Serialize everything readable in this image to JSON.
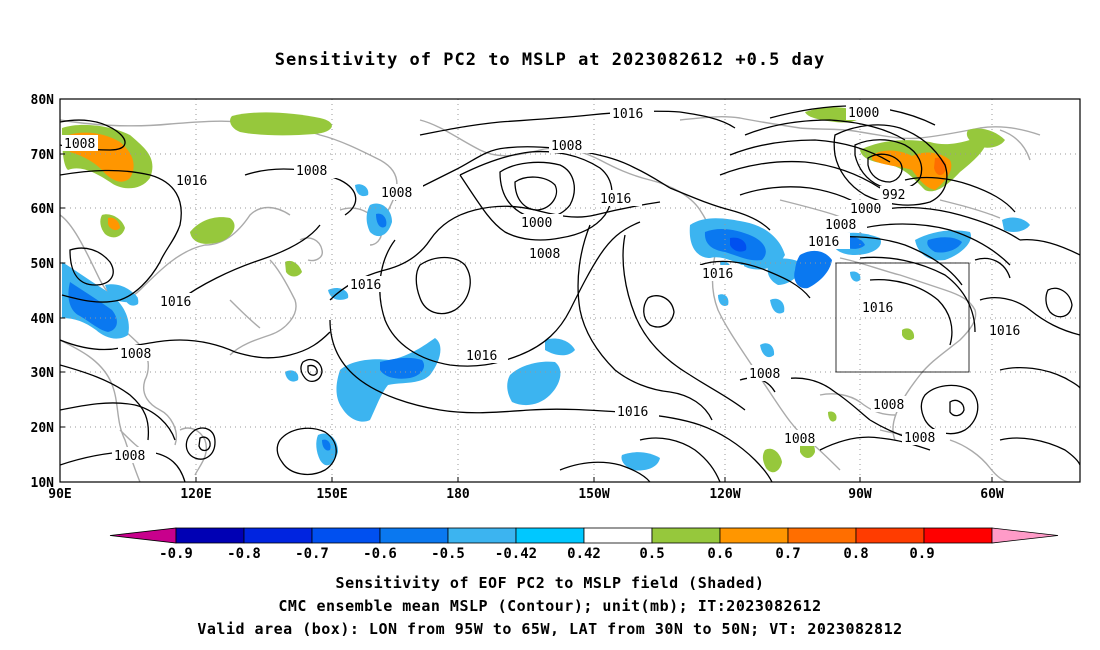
{
  "title": "Sensitivity of PC2 to MSLP at 2023082612 +0.5 day",
  "lat_labels": [
    "80N",
    "70N",
    "60N",
    "50N",
    "40N",
    "30N",
    "20N",
    "10N"
  ],
  "lon_labels": [
    "90E",
    "120E",
    "150E",
    "180",
    "150W",
    "120W",
    "90W",
    "60W"
  ],
  "contour_labels": [
    "1016",
    "1008",
    "1016",
    "1008",
    "1008",
    "1000",
    "1008",
    "1016",
    "1000",
    "992",
    "1000",
    "1008",
    "1016",
    "1016",
    "1016",
    "1016",
    "1016",
    "1016",
    "1008",
    "1008",
    "1016",
    "1008",
    "1008",
    "1016",
    "1008",
    "1008",
    "1008"
  ],
  "colorbar": {
    "labels": [
      "-0.9",
      "-0.8",
      "-0.7",
      "-0.6",
      "-0.5",
      "-0.42",
      "0.42",
      "0.5",
      "0.6",
      "0.7",
      "0.8",
      "0.9"
    ],
    "colors": [
      "#c8008c",
      "#0000b4",
      "#0024e0",
      "#0050f0",
      "#0a78f0",
      "#3cb4f0",
      "#00c8ff",
      "#ffffff",
      "#96c83c",
      "#ff9600",
      "#ff6e00",
      "#ff3c00",
      "#ff0000",
      "#ff9bc8"
    ]
  },
  "captions": {
    "line1": "Sensitivity of EOF PC2 to MSLP field (Shaded)",
    "line2": "CMC ensemble mean MSLP (Contour); unit(mb); IT:2023082612",
    "line3": "Valid area (box): LON from 95W to 65W, LAT from 30N to 50N; VT: 2023082812"
  }
}
